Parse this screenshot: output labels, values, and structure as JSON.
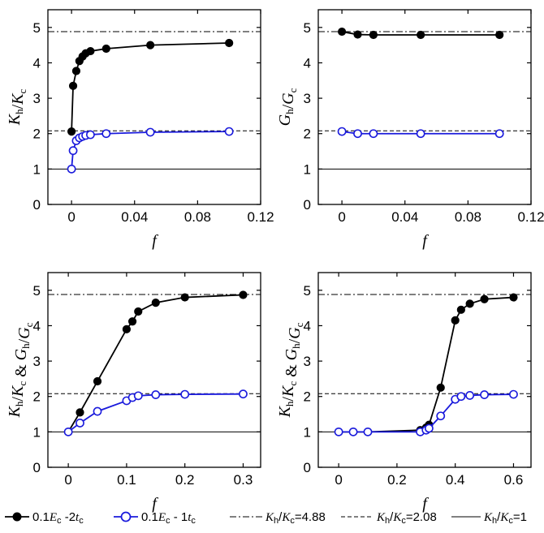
{
  "chart_data": [
    {
      "type": "line",
      "ylabel": "Kh/Kc",
      "xlabel": "f",
      "xlim": [
        -0.015,
        0.12
      ],
      "ylim": [
        0,
        5.5
      ],
      "xticks": [
        "0",
        "0.04",
        "0.08",
        "0.12"
      ],
      "yticks": [
        "0",
        "1",
        "2",
        "3",
        "4",
        "5"
      ],
      "series": [
        {
          "name": "0.1Ec -2tc",
          "style": "filled",
          "x": [
            0,
            0.001,
            0.003,
            0.005,
            0.007,
            0.009,
            0.012,
            0.022,
            0.05,
            0.1
          ],
          "y": [
            2.06,
            3.35,
            3.77,
            4.05,
            4.18,
            4.27,
            4.33,
            4.4,
            4.5,
            4.56
          ]
        },
        {
          "name": "0.1Ec - 1tc",
          "style": "open",
          "x": [
            0,
            0.001,
            0.003,
            0.005,
            0.007,
            0.009,
            0.012,
            0.022,
            0.05,
            0.1
          ],
          "y": [
            1.0,
            1.52,
            1.8,
            1.88,
            1.92,
            1.95,
            1.97,
            2.0,
            2.04,
            2.06
          ]
        }
      ]
    },
    {
      "type": "line",
      "ylabel": "Gh/Gc",
      "xlabel": "f",
      "xlim": [
        -0.015,
        0.12
      ],
      "ylim": [
        0,
        5.5
      ],
      "xticks": [
        "0",
        "0.04",
        "0.08",
        "0.12"
      ],
      "yticks": [
        "0",
        "1",
        "2",
        "3",
        "4",
        "5"
      ],
      "series": [
        {
          "name": "0.1Ec -2tc",
          "style": "filled",
          "x": [
            0,
            0.01,
            0.02,
            0.05,
            0.1
          ],
          "y": [
            4.88,
            4.8,
            4.79,
            4.79,
            4.79
          ]
        },
        {
          "name": "0.1Ec - 1tc",
          "style": "open",
          "x": [
            0,
            0.01,
            0.02,
            0.05,
            0.1
          ],
          "y": [
            2.06,
            2.0,
            2.0,
            2.0,
            2.0
          ]
        }
      ]
    },
    {
      "type": "line",
      "ylabel": "Kh/Kc & Gh/Gc",
      "xlabel": "f",
      "xlim": [
        -0.035,
        0.33
      ],
      "ylim": [
        0,
        5.5
      ],
      "xticks": [
        "0",
        "0.1",
        "0.2",
        "0.3"
      ],
      "yticks": [
        "0",
        "1",
        "2",
        "3",
        "4",
        "5"
      ],
      "series": [
        {
          "name": "0.1Ec -2tc",
          "style": "filled",
          "x": [
            0,
            0.02,
            0.05,
            0.1,
            0.11,
            0.12,
            0.15,
            0.2,
            0.3
          ],
          "y": [
            1.0,
            1.55,
            2.43,
            3.9,
            4.12,
            4.4,
            4.65,
            4.8,
            4.87
          ]
        },
        {
          "name": "0.1Ec - 1tc",
          "style": "open",
          "x": [
            0,
            0.02,
            0.05,
            0.1,
            0.11,
            0.12,
            0.15,
            0.2,
            0.3
          ],
          "y": [
            1.0,
            1.25,
            1.58,
            1.88,
            1.97,
            2.02,
            2.05,
            2.06,
            2.07
          ]
        }
      ]
    },
    {
      "type": "line",
      "ylabel": "Kh/Kc & Gh/Gc",
      "xlabel": "f",
      "xlim": [
        -0.07,
        0.66
      ],
      "ylim": [
        0,
        5.5
      ],
      "xticks": [
        "0",
        "0.2",
        "0.4",
        "0.6"
      ],
      "yticks": [
        "0",
        "1",
        "2",
        "3",
        "4",
        "5"
      ],
      "series": [
        {
          "name": "0.1Ec -2tc",
          "style": "filled",
          "x": [
            0,
            0.05,
            0.1,
            0.28,
            0.3,
            0.31,
            0.35,
            0.4,
            0.42,
            0.45,
            0.5,
            0.6
          ],
          "y": [
            1.0,
            1.0,
            1.0,
            1.05,
            1.12,
            1.2,
            2.25,
            4.15,
            4.45,
            4.62,
            4.75,
            4.8
          ]
        },
        {
          "name": "0.1Ec - 1tc",
          "style": "open",
          "x": [
            0,
            0.05,
            0.1,
            0.28,
            0.3,
            0.31,
            0.35,
            0.4,
            0.42,
            0.45,
            0.5,
            0.6
          ],
          "y": [
            1.0,
            1.0,
            1.0,
            1.0,
            1.05,
            1.1,
            1.45,
            1.92,
            2.0,
            2.03,
            2.05,
            2.06
          ]
        }
      ]
    }
  ],
  "reference_lines": [
    {
      "label": "Kh/Kc=4.88",
      "value": 4.88,
      "dash": "dashdot"
    },
    {
      "label": "Kh/Kc=2.08",
      "value": 2.08,
      "dash": "dashed"
    },
    {
      "label": "Kh/Kc=1",
      "value": 1,
      "dash": "solid"
    }
  ],
  "legend": {
    "placement": "bottom",
    "items": [
      {
        "prefix": "0.1",
        "a": "E",
        "a_sub": "c",
        "mid": " -2",
        "b": "t",
        "b_sub": "c",
        "style": "filled"
      },
      {
        "prefix": "0.1",
        "a": "E",
        "a_sub": "c",
        "mid": " - 1",
        "b": "t",
        "b_sub": "c",
        "style": "open"
      },
      {
        "a": "K",
        "a_sub": "h",
        "mid": "/",
        "b": "K",
        "b_sub": "c",
        "suffix": "=4.88",
        "dash": "dashdot"
      },
      {
        "a": "K",
        "a_sub": "h",
        "mid": "/",
        "b": "K",
        "b_sub": "c",
        "suffix": "=2.08",
        "dash": "dashed"
      },
      {
        "a": "K",
        "a_sub": "h",
        "mid": "/",
        "b": "K",
        "b_sub": "c",
        "suffix": "=1",
        "dash": "solid"
      }
    ]
  },
  "colors": {
    "series_filled": "#000000",
    "series_open": "#1a1adc",
    "axis": "#000000"
  }
}
